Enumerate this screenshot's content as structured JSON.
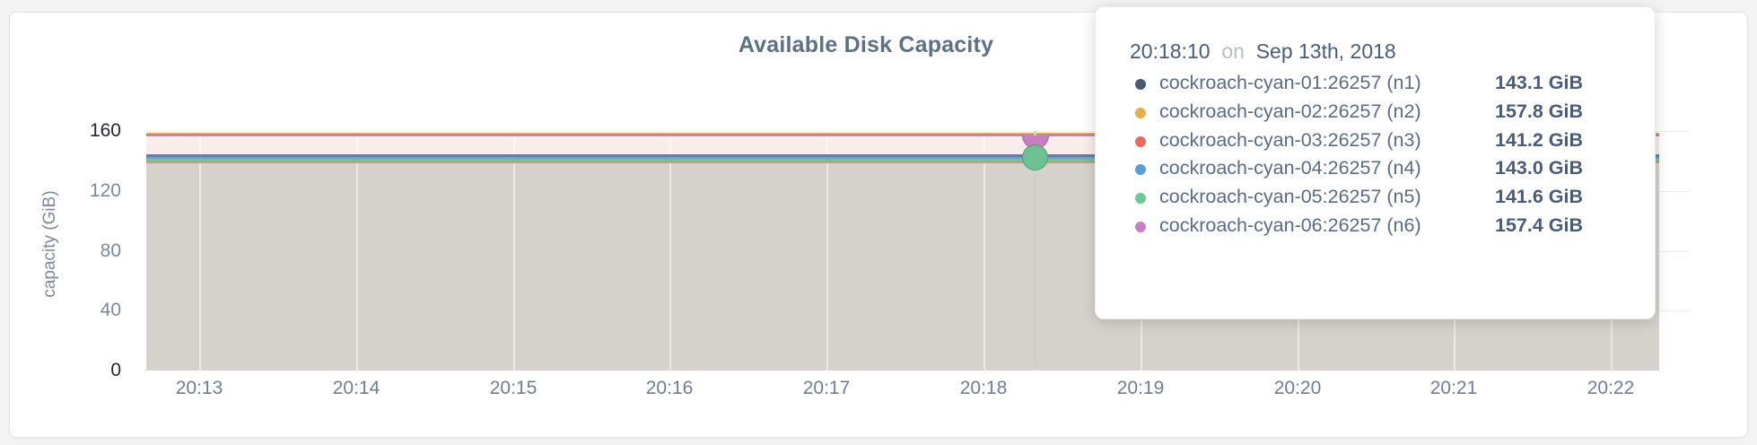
{
  "chart": {
    "title": "Available Disk Capacity",
    "y_axis_label": "capacity (GiB)"
  },
  "tooltip": {
    "time": "20:18:10",
    "conjunction": "on",
    "date": "Sep 13th, 2018",
    "rows": [
      {
        "dot_color": "#4a5a73",
        "name": "cockroach-cyan-01:26257 (n1)",
        "value": "143.1 GiB"
      },
      {
        "dot_color": "#e3b04b",
        "name": "cockroach-cyan-02:26257 (n2)",
        "value": "157.8 GiB"
      },
      {
        "dot_color": "#e46c5f",
        "name": "cockroach-cyan-03:26257 (n3)",
        "value": "141.2 GiB"
      },
      {
        "dot_color": "#58a0d6",
        "name": "cockroach-cyan-04:26257 (n4)",
        "value": "143.0 GiB"
      },
      {
        "dot_color": "#6dc88f",
        "name": "cockroach-cyan-05:26257 (n5)",
        "value": "141.6 GiB"
      },
      {
        "dot_color": "#c87fc0",
        "name": "cockroach-cyan-06:26257 (n6)",
        "value": "157.4 GiB"
      }
    ]
  },
  "chart_data": {
    "type": "area",
    "title": "Available Disk Capacity",
    "ylabel": "capacity (GiB)",
    "xlabel": "",
    "ylim": [
      0,
      160
    ],
    "yticks": [
      160,
      120,
      80,
      40,
      0
    ],
    "yticks_emphasized": [
      160,
      0
    ],
    "xticks": [
      "20:13",
      "20:14",
      "20:15",
      "20:16",
      "20:17",
      "20:18",
      "20:19",
      "20:20",
      "20:21",
      "20:22"
    ],
    "grid": true,
    "legend_position": "hover tooltip overlay, top right",
    "hover_time": "20:18:10",
    "hover_date": "Sep 13th, 2018",
    "shape_note": "all six series are flat (constant) lines across the full visible time range; hover crosshair near 20:18:10 shows a pink half-disc marker on the upper line cluster and a green circle marker on the lower line cluster",
    "series": [
      {
        "name": "cockroach-cyan-01:26257 (n1)",
        "node": "n1",
        "value_gib": 143.1,
        "dot_color": "#4a5a73",
        "line_color": "#6d79a4"
      },
      {
        "name": "cockroach-cyan-02:26257 (n2)",
        "node": "n2",
        "value_gib": 157.8,
        "dot_color": "#e3b04b",
        "line_color": "#e2b44e"
      },
      {
        "name": "cockroach-cyan-03:26257 (n3)",
        "node": "n3",
        "value_gib": 141.2,
        "dot_color": "#e46c5f",
        "line_color": "#c79d80"
      },
      {
        "name": "cockroach-cyan-04:26257 (n4)",
        "node": "n4",
        "value_gib": 143.0,
        "dot_color": "#58a0d6",
        "line_color": "#63a6d8"
      },
      {
        "name": "cockroach-cyan-05:26257 (n5)",
        "node": "n5",
        "value_gib": 141.6,
        "dot_color": "#6dc88f",
        "line_color": "#72c292"
      },
      {
        "name": "cockroach-cyan-06:26257 (n6)",
        "node": "n6",
        "value_gib": 157.4,
        "dot_color": "#c87fc0",
        "line_color": "#c77fc0"
      }
    ],
    "fill_between_upper_and_lower_cluster": "#f8edea",
    "fill_below_lower_cluster": "#d5d2cb"
  }
}
